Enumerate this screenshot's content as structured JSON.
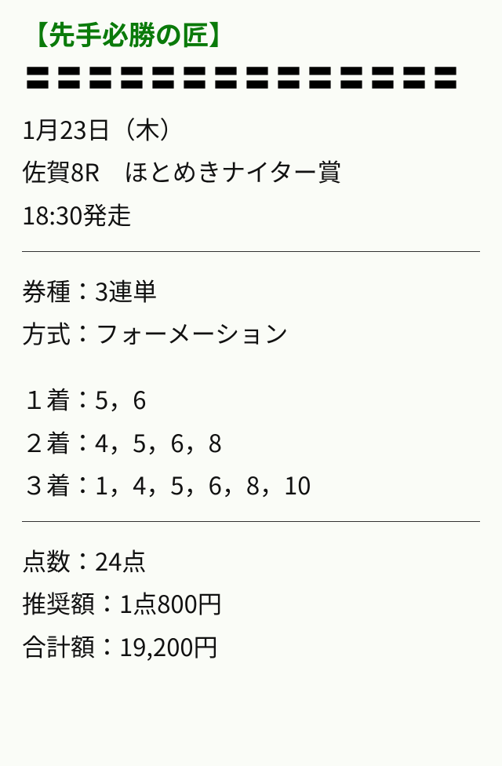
{
  "title": "【先手必勝の匠】",
  "divider_char": "〓",
  "divider_count": 14,
  "date": "1月23日（木）",
  "race": "佐賀8R　ほとめきナイター賞",
  "start": "18:30発走",
  "ticket_type": "券種：3連単",
  "method": "方式：フォーメーション",
  "pos1": "１着：5，6",
  "pos2": "２着：4，5，6，8",
  "pos3": "３着：1，4，5，6，8，10",
  "points": "点数：24点",
  "rec_amount": "推奨額：1点800円",
  "total": "合計額：19,200円",
  "colors": {
    "title": "#0a7a0a",
    "text": "#111111",
    "bg": "#fafcf7",
    "rule": "#333333"
  }
}
